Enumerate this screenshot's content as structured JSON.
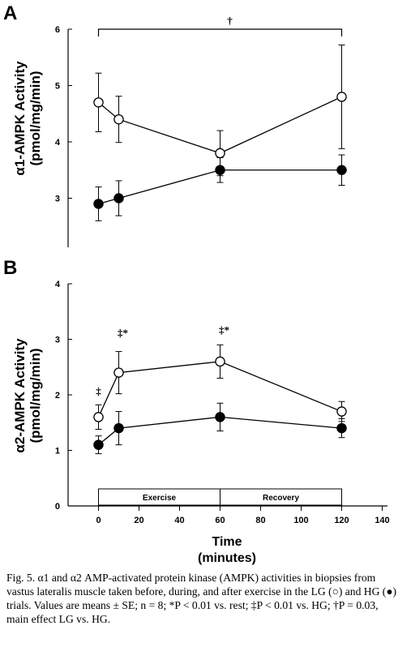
{
  "panels": {
    "a": {
      "letter": "A",
      "ylabel_line1": "α1-AMPK Activity",
      "ylabel_line2": "(pmol/mg/min)",
      "bracket_symbol": "†"
    },
    "b": {
      "letter": "B",
      "ylabel_line1": "α2-AMPK Activity",
      "ylabel_line2": "(pmol/mg/min)",
      "exercise_label": "Exercise",
      "recovery_label": "Recovery",
      "xlabel_line1": "Time",
      "xlabel_line2": "(minutes)"
    }
  },
  "caption": "Fig. 5.  α1 and α2 AMP-activated protein kinase (AMPK) activities in biopsies from vastus lateralis muscle taken before, during, and after exercise in the LG (○) and HG (●) trials. Values are means ± SE; n = 8; *P < 0.01 vs. rest; ‡P < 0.01 vs. HG; †P = 0.03, main effect LG vs. HG.",
  "chart_data": [
    {
      "type": "line",
      "panel": "A",
      "title": "",
      "xlabel": "",
      "ylabel": "α1-AMPK Activity (pmol/mg/min)",
      "ylim": [
        2,
        6
      ],
      "yticks": [
        6,
        5,
        4,
        3
      ],
      "series": [
        {
          "name": "LG",
          "marker": "open-circle",
          "x": [
            0,
            10,
            60,
            120
          ],
          "values": [
            4.7,
            4.4,
            3.8,
            4.8
          ],
          "error": [
            0.52,
            0.41,
            0.4,
            0.92
          ]
        },
        {
          "name": "HG",
          "marker": "filled-circle",
          "x": [
            0,
            10,
            60,
            120
          ],
          "values": [
            2.9,
            3.0,
            3.5,
            3.5
          ],
          "error": [
            0.3,
            0.31,
            0.22,
            0.27
          ]
        }
      ],
      "annotations": [
        {
          "text": "†",
          "type": "bracket",
          "from": 0,
          "to": 120
        }
      ]
    },
    {
      "type": "line",
      "panel": "B",
      "title": "",
      "xlabel": "Time (minutes)",
      "ylabel": "α2-AMPK Activity (pmol/mg/min)",
      "xlim": [
        -15,
        140
      ],
      "ylim": [
        0,
        4
      ],
      "xticks": [
        0,
        20,
        40,
        60,
        80,
        100,
        120,
        140
      ],
      "yticks": [
        0,
        1,
        2,
        3,
        4
      ],
      "series": [
        {
          "name": "LG",
          "marker": "open-circle",
          "x": [
            0,
            10,
            60,
            120
          ],
          "values": [
            1.6,
            2.4,
            2.6,
            1.7
          ],
          "error": [
            0.22,
            0.38,
            0.3,
            0.18
          ]
        },
        {
          "name": "HG",
          "marker": "filled-circle",
          "x": [
            0,
            10,
            60,
            120
          ],
          "values": [
            1.1,
            1.4,
            1.6,
            1.4
          ],
          "error": [
            0.16,
            0.3,
            0.25,
            0.17
          ]
        }
      ],
      "annotations": [
        {
          "text": "‡",
          "x": 0,
          "y": 2.0
        },
        {
          "text": "‡*",
          "x": 10,
          "y": 3.05
        },
        {
          "text": "‡*",
          "x": 60,
          "y": 3.1
        }
      ],
      "phases": [
        {
          "label": "Exercise",
          "from": 0,
          "to": 60
        },
        {
          "label": "Recovery",
          "from": 60,
          "to": 120
        }
      ]
    }
  ]
}
